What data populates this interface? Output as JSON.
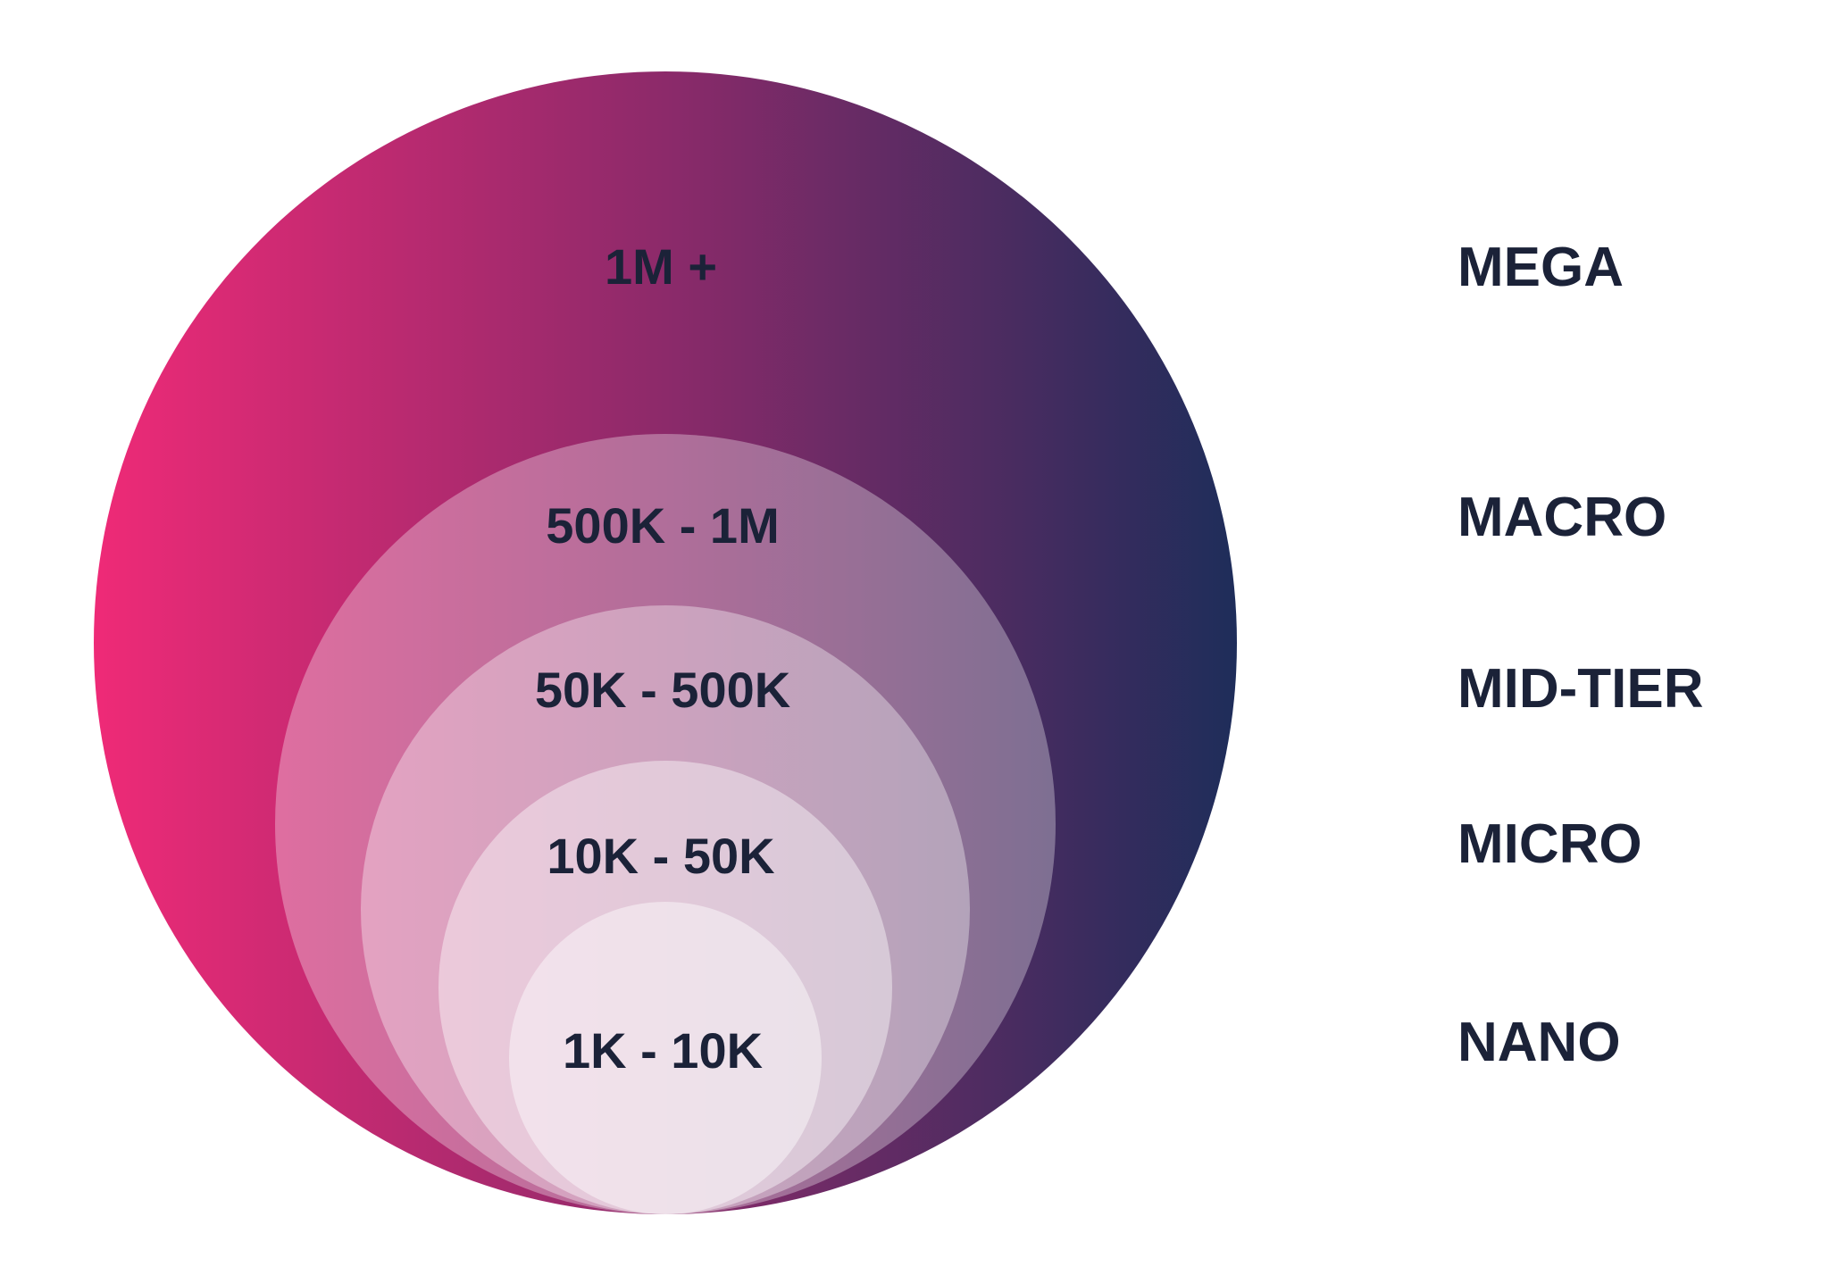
{
  "colors": {
    "outer_gradient_start": "#ef2a77",
    "outer_gradient_mid": "#8c2a6a",
    "outer_gradient_end": "#1e2d5a",
    "connector_line": "#f2a51c",
    "text": "#1b2238"
  },
  "tiers": [
    {
      "range": "1M +",
      "name": "MEGA"
    },
    {
      "range": "500K - 1M",
      "name": "MACRO"
    },
    {
      "range": "50K - 500K",
      "name": "MID-TIER"
    },
    {
      "range": "10K - 50K",
      "name": "MICRO"
    },
    {
      "range": "1K - 10K",
      "name": "NANO"
    }
  ]
}
